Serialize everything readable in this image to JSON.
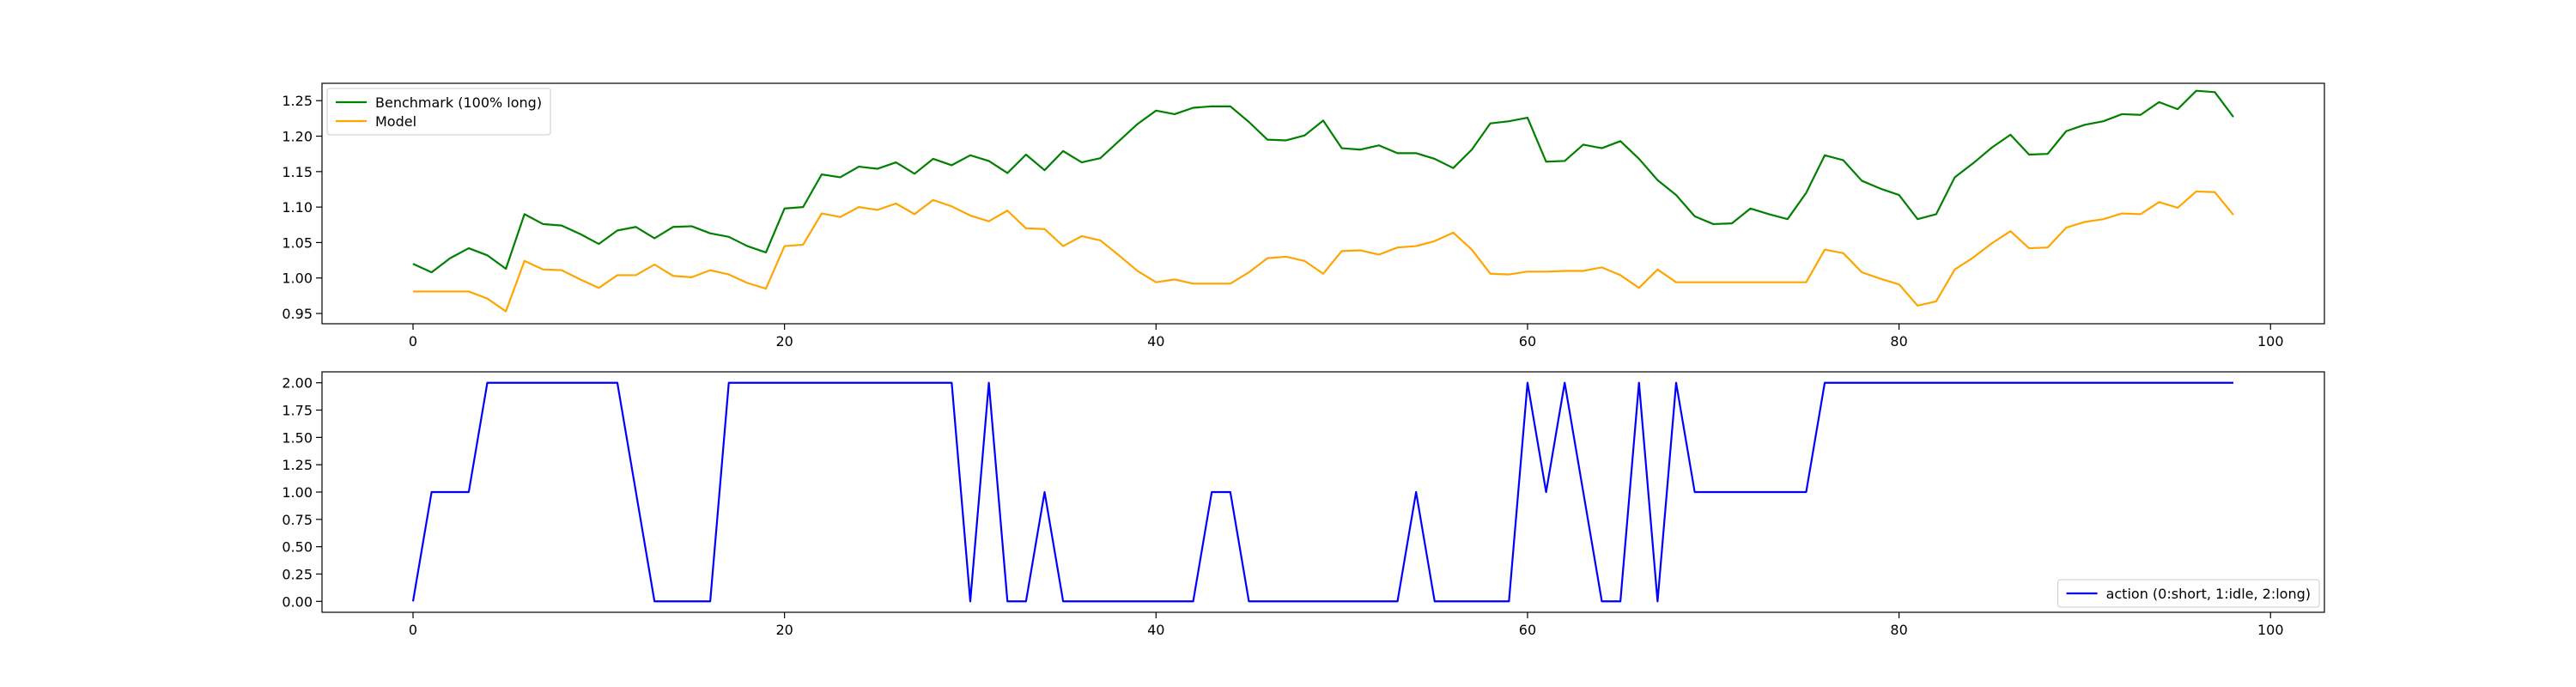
{
  "chart_data": [
    {
      "type": "line",
      "title": "",
      "xlabel": "",
      "ylabel": "",
      "xlim": [
        -4.9,
        102.9
      ],
      "ylim": [
        0.9355,
        1.2745
      ],
      "xticks": [
        0,
        20,
        40,
        60,
        80,
        100
      ],
      "yticks": [
        0.95,
        1.0,
        1.05,
        1.1,
        1.15,
        1.2,
        1.25
      ],
      "grid": false,
      "legend_position": "upper-left",
      "series": [
        {
          "name": "Benchmark (100% long)",
          "color": "#008000",
          "x": [
            0,
            1,
            2,
            3,
            4,
            5,
            6,
            7,
            8,
            9,
            10,
            11,
            12,
            13,
            14,
            15,
            16,
            17,
            18,
            19,
            20,
            21,
            22,
            23,
            24,
            25,
            26,
            27,
            28,
            29,
            30,
            31,
            32,
            33,
            34,
            35,
            36,
            37,
            38,
            39,
            40,
            41,
            42,
            43,
            44,
            45,
            46,
            47,
            48,
            49,
            50,
            51,
            52,
            53,
            54,
            55,
            56,
            57,
            58,
            59,
            60,
            61,
            62,
            63,
            64,
            65,
            66,
            67,
            68,
            69,
            70,
            71,
            72,
            73,
            74,
            75,
            76,
            77,
            78,
            79,
            80,
            81,
            82,
            83,
            84,
            85,
            86,
            87,
            88,
            89,
            90,
            91,
            92,
            93,
            94,
            95,
            96,
            97,
            98
          ],
          "values": [
            1.02,
            1.008,
            1.028,
            1.042,
            1.032,
            1.013,
            1.09,
            1.076,
            1.074,
            1.062,
            1.048,
            1.067,
            1.072,
            1.056,
            1.072,
            1.073,
            1.063,
            1.058,
            1.045,
            1.036,
            1.098,
            1.1,
            1.146,
            1.142,
            1.157,
            1.154,
            1.163,
            1.147,
            1.168,
            1.159,
            1.173,
            1.165,
            1.148,
            1.174,
            1.152,
            1.179,
            1.163,
            1.169,
            1.193,
            1.217,
            1.236,
            1.231,
            1.24,
            1.242,
            1.242,
            1.22,
            1.195,
            1.194,
            1.201,
            1.222,
            1.183,
            1.181,
            1.187,
            1.176,
            1.176,
            1.168,
            1.155,
            1.181,
            1.218,
            1.221,
            1.226,
            1.164,
            1.165,
            1.188,
            1.183,
            1.193,
            1.168,
            1.138,
            1.117,
            1.087,
            1.076,
            1.077,
            1.098,
            1.09,
            1.083,
            1.12,
            1.173,
            1.166,
            1.137,
            1.126,
            1.117,
            1.083,
            1.09,
            1.142,
            1.162,
            1.184,
            1.202,
            1.174,
            1.175,
            1.207,
            1.216,
            1.221,
            1.231,
            1.23,
            1.248,
            1.238,
            1.264,
            1.262,
            1.227
          ]
        },
        {
          "name": "Model",
          "color": "#FFA500",
          "x": [
            0,
            1,
            2,
            3,
            4,
            5,
            6,
            7,
            8,
            9,
            10,
            11,
            12,
            13,
            14,
            15,
            16,
            17,
            18,
            19,
            20,
            21,
            22,
            23,
            24,
            25,
            26,
            27,
            28,
            29,
            30,
            31,
            32,
            33,
            34,
            35,
            36,
            37,
            38,
            39,
            40,
            41,
            42,
            43,
            44,
            45,
            46,
            47,
            48,
            49,
            50,
            51,
            52,
            53,
            54,
            55,
            56,
            57,
            58,
            59,
            60,
            61,
            62,
            63,
            64,
            65,
            66,
            67,
            68,
            69,
            70,
            71,
            72,
            73,
            74,
            75,
            76,
            77,
            78,
            79,
            80,
            81,
            82,
            83,
            84,
            85,
            86,
            87,
            88,
            89,
            90,
            91,
            92,
            93,
            94,
            95,
            96,
            97,
            98
          ],
          "values": [
            0.981,
            0.981,
            0.981,
            0.981,
            0.971,
            0.953,
            1.024,
            1.012,
            1.011,
            0.998,
            0.986,
            1.004,
            1.004,
            1.019,
            1.003,
            1.001,
            1.011,
            1.005,
            0.993,
            0.985,
            1.045,
            1.047,
            1.091,
            1.086,
            1.1,
            1.096,
            1.105,
            1.09,
            1.11,
            1.101,
            1.088,
            1.08,
            1.095,
            1.07,
            1.069,
            1.045,
            1.059,
            1.053,
            1.032,
            1.01,
            0.994,
            0.998,
            0.992,
            0.992,
            0.992,
            1.008,
            1.028,
            1.03,
            1.024,
            1.006,
            1.038,
            1.039,
            1.033,
            1.043,
            1.045,
            1.052,
            1.064,
            1.04,
            1.006,
            1.005,
            1.009,
            1.009,
            1.01,
            1.01,
            1.015,
            1.004,
            0.986,
            1.012,
            0.994,
            0.994,
            0.994,
            0.994,
            0.994,
            0.994,
            0.994,
            0.994,
            1.04,
            1.035,
            1.008,
            0.999,
            0.991,
            0.961,
            0.967,
            1.012,
            1.029,
            1.049,
            1.066,
            1.042,
            1.043,
            1.071,
            1.079,
            1.083,
            1.091,
            1.09,
            1.107,
            1.099,
            1.122,
            1.121,
            1.089
          ]
        }
      ]
    },
    {
      "type": "line",
      "title": "",
      "xlabel": "",
      "ylabel": "",
      "xlim": [
        -4.9,
        102.9
      ],
      "ylim": [
        -0.1,
        2.1
      ],
      "xticks": [
        0,
        20,
        40,
        60,
        80,
        100
      ],
      "yticks": [
        0.0,
        0.25,
        0.5,
        0.75,
        1.0,
        1.25,
        1.5,
        1.75,
        2.0
      ],
      "grid": false,
      "legend_position": "lower-right",
      "series": [
        {
          "name": "action (0:short, 1:idle, 2:long)",
          "color": "#0000FF",
          "x": [
            0,
            1,
            2,
            3,
            4,
            5,
            6,
            7,
            8,
            9,
            10,
            11,
            12,
            13,
            14,
            15,
            16,
            17,
            18,
            19,
            20,
            21,
            22,
            23,
            24,
            25,
            26,
            27,
            28,
            29,
            30,
            31,
            32,
            33,
            34,
            35,
            36,
            37,
            38,
            39,
            40,
            41,
            42,
            43,
            44,
            45,
            46,
            47,
            48,
            49,
            50,
            51,
            52,
            53,
            54,
            55,
            56,
            57,
            58,
            59,
            60,
            61,
            62,
            63,
            64,
            65,
            66,
            67,
            68,
            69,
            70,
            71,
            72,
            73,
            74,
            75,
            76,
            77,
            78,
            79,
            80,
            81,
            82,
            83,
            84,
            85,
            86,
            87,
            88,
            89,
            90,
            91,
            92,
            93,
            94,
            95,
            96,
            97,
            98
          ],
          "values": [
            0,
            1,
            1,
            1,
            2,
            2,
            2,
            2,
            2,
            2,
            2,
            2,
            1,
            0,
            0,
            0,
            0,
            2,
            2,
            2,
            2,
            2,
            2,
            2,
            2,
            2,
            2,
            2,
            2,
            2,
            0,
            2,
            0,
            0,
            1,
            0,
            0,
            0,
            0,
            0,
            0,
            0,
            0,
            1,
            1,
            0,
            0,
            0,
            0,
            0,
            0,
            0,
            0,
            0,
            1,
            0,
            0,
            0,
            0,
            0,
            2,
            1,
            2,
            1,
            0,
            0,
            2,
            0,
            2,
            1,
            1,
            1,
            1,
            1,
            1,
            1,
            2,
            2,
            2,
            2,
            2,
            2,
            2,
            2,
            2,
            2,
            2,
            2,
            2,
            2,
            2,
            2,
            2,
            2,
            2,
            2,
            2,
            2,
            2
          ]
        }
      ]
    }
  ]
}
